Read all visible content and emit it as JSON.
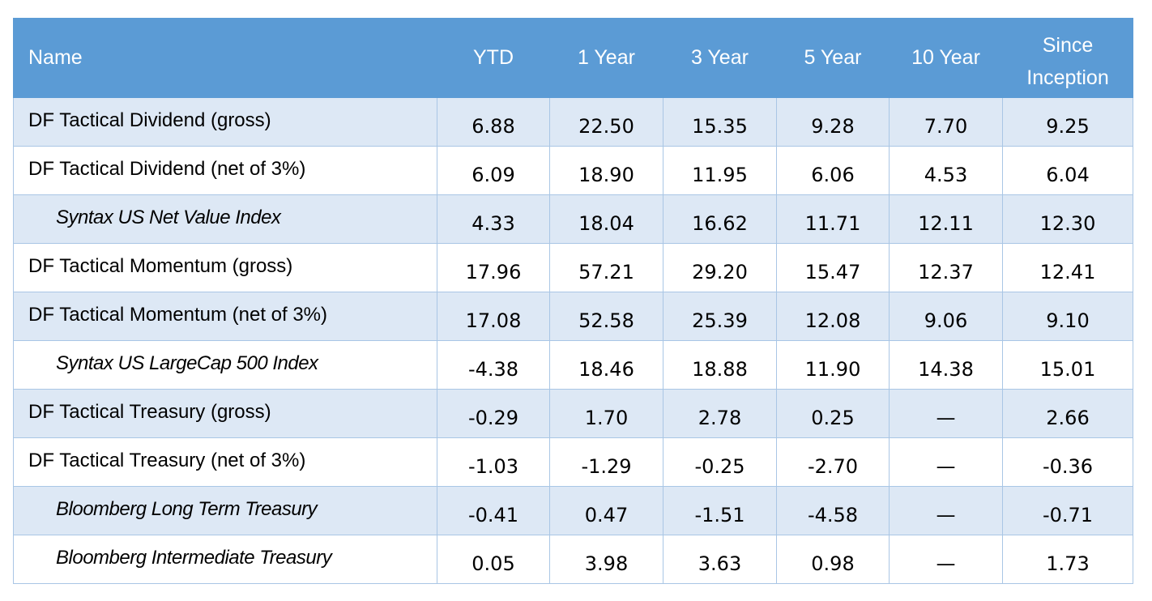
{
  "table": {
    "columns": [
      "Name",
      "YTD",
      "1 Year",
      "3 Year",
      "5 Year",
      "10 Year",
      "Since Inception"
    ],
    "rows": [
      {
        "name": "DF Tactical Dividend (gross)",
        "index": false,
        "values": [
          "6.88",
          "22.50",
          "15.35",
          "9.28",
          "7.70",
          "9.25"
        ]
      },
      {
        "name": "DF Tactical Dividend (net of 3%)",
        "index": false,
        "values": [
          "6.09",
          "18.90",
          "11.95",
          "6.06",
          "4.53",
          "6.04"
        ]
      },
      {
        "name": "Syntax US Net Value Index",
        "index": true,
        "values": [
          "4.33",
          "18.04",
          "16.62",
          "11.71",
          "12.11",
          "12.30"
        ]
      },
      {
        "name": "DF Tactical Momentum (gross)",
        "index": false,
        "values": [
          "17.96",
          "57.21",
          "29.20",
          "15.47",
          "12.37",
          "12.41"
        ]
      },
      {
        "name": "DF Tactical Momentum (net of 3%)",
        "index": false,
        "values": [
          "17.08",
          "52.58",
          "25.39",
          "12.08",
          "9.06",
          "9.10"
        ]
      },
      {
        "name": "Syntax US LargeCap 500 Index",
        "index": true,
        "values": [
          "-4.38",
          "18.46",
          "18.88",
          "11.90",
          "14.38",
          "15.01"
        ]
      },
      {
        "name": "DF Tactical Treasury (gross)",
        "index": false,
        "values": [
          "-0.29",
          "1.70",
          "2.78",
          "0.25",
          "—",
          "2.66"
        ]
      },
      {
        "name": "DF Tactical Treasury (net of 3%)",
        "index": false,
        "values": [
          "-1.03",
          "-1.29",
          "-0.25",
          "-2.70",
          "—",
          "-0.36"
        ]
      },
      {
        "name": "Bloomberg Long Term Treasury",
        "index": true,
        "values": [
          "-0.41",
          "0.47",
          "-1.51",
          "-4.58",
          "—",
          "-0.71"
        ]
      },
      {
        "name": "Bloomberg Intermediate Treasury",
        "index": true,
        "values": [
          "0.05",
          "3.98",
          "3.63",
          "0.98",
          "—",
          "1.73"
        ]
      }
    ]
  },
  "colors": {
    "header_bg": "#5b9bd5",
    "shaded_row": "#dde8f5",
    "border": "#a9c6e5"
  }
}
